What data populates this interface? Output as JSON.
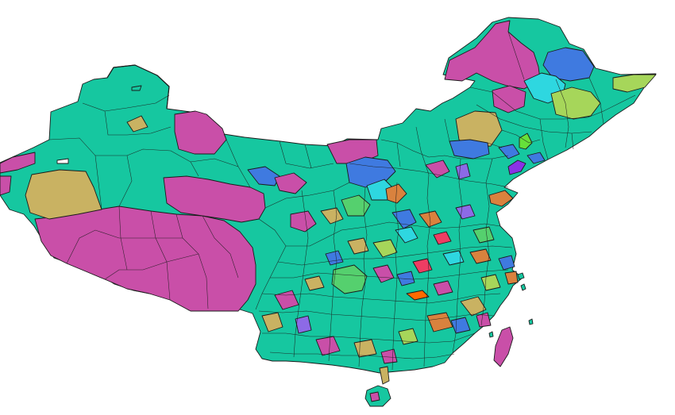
{
  "map": {
    "palette": {
      "base": "#16c7a0",
      "magenta": "#c94fa8",
      "khaki": "#c9b262",
      "blue": "#3f7ae0",
      "cyan": "#2ed7e0",
      "lime": "#a6d65a",
      "green": "#55d06e",
      "orange": "#d9823e",
      "purple": "#8d6ae6",
      "violet": "#8a32e6",
      "red": "#ee3d63",
      "bright-green": "#66e03a",
      "bright-orange": "#ff6a00",
      "outline": "#1b1b1b"
    }
  }
}
